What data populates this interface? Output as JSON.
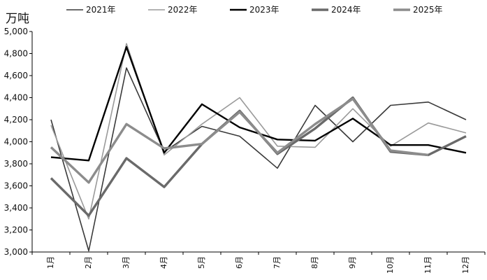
{
  "chart_data": {
    "type": "line",
    "ylabel": "万吨",
    "ylim": [
      3000,
      5000
    ],
    "yticks": [
      3000,
      3200,
      3400,
      3600,
      3800,
      4000,
      4200,
      4400,
      4600,
      4800,
      5000
    ],
    "ytick_labels": [
      "3,000",
      "3,200",
      "3,400",
      "3,600",
      "3,800",
      "4,000",
      "4,200",
      "4,400",
      "4,600",
      "4,800",
      "5,000"
    ],
    "categories": [
      "1月",
      "2月",
      "3月",
      "4月",
      "5月",
      "6月",
      "7月",
      "8月",
      "9月",
      "10月",
      "11月",
      "12月"
    ],
    "grid": false,
    "legend_position": "top",
    "series": [
      {
        "name": "2021年",
        "color": "#3a3a3a",
        "values": [
          4200,
          3010,
          4670,
          3910,
          4140,
          4050,
          3760,
          4330,
          4000,
          4330,
          4360,
          4200
        ]
      },
      {
        "name": "2022年",
        "color": "#9a9a9a",
        "values": [
          4150,
          3300,
          4890,
          3880,
          4160,
          4400,
          3960,
          3950,
          4300,
          3960,
          4170,
          4080
        ]
      },
      {
        "name": "2023年",
        "color": "#000000",
        "values": [
          3860,
          3830,
          4860,
          3900,
          4340,
          4130,
          4020,
          4010,
          4210,
          3970,
          3970,
          3900
        ]
      },
      {
        "name": "2024年",
        "color": "#6a6a6a",
        "values": [
          3670,
          3330,
          3850,
          3590,
          3980,
          4280,
          3890,
          4120,
          4400,
          3910,
          3880,
          4050
        ]
      },
      {
        "name": "2025年",
        "color": "#8c8c8c",
        "values": [
          3950,
          3630,
          4160,
          3940,
          3980,
          4270,
          3900,
          4160,
          4390,
          3920,
          3880,
          null
        ]
      }
    ]
  }
}
